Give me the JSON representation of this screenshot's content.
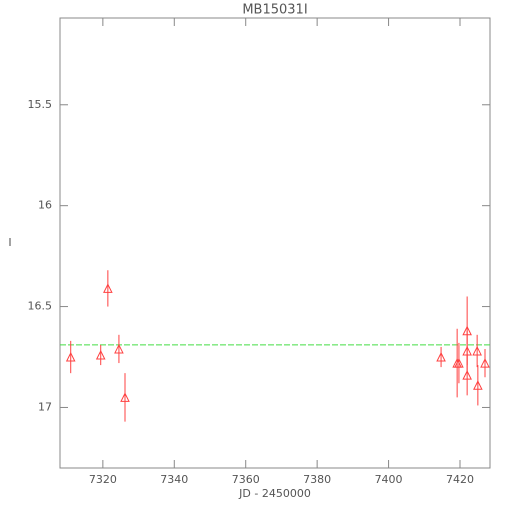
{
  "chart_data": {
    "type": "scatter",
    "title": "MB15031I",
    "x_label": "JD - 2450000",
    "y_label": "I",
    "xlim": [
      7308,
      7428.4
    ],
    "xticks": [
      7320,
      7340,
      7360,
      7380,
      7400,
      7420
    ],
    "ylim": [
      17.3,
      15.07
    ],
    "yticks": [
      15.5,
      16.0,
      16.5,
      17.0
    ],
    "y_inverted": true,
    "series": [
      {
        "color": "#ff4040",
        "x": [
          7311.0,
          7319.4,
          7321.4,
          7324.5,
          7326.2,
          7414.7,
          7419.2,
          7419.7,
          7422.0,
          7422.0,
          7422.0,
          7424.8,
          7425.0,
          7427.0
        ],
        "values": [
          16.75,
          16.74,
          16.41,
          16.71,
          16.95,
          16.75,
          16.78,
          16.78,
          16.62,
          16.72,
          16.84,
          16.72,
          16.89,
          16.78
        ],
        "errors": [
          0.08,
          0.05,
          0.09,
          0.07,
          0.12,
          0.05,
          0.17,
          0.1,
          0.17,
          0.1,
          0.1,
          0.08,
          0.1,
          0.07
        ]
      }
    ],
    "reference_line": {
      "value": 16.69,
      "color": "#44dd44"
    }
  }
}
